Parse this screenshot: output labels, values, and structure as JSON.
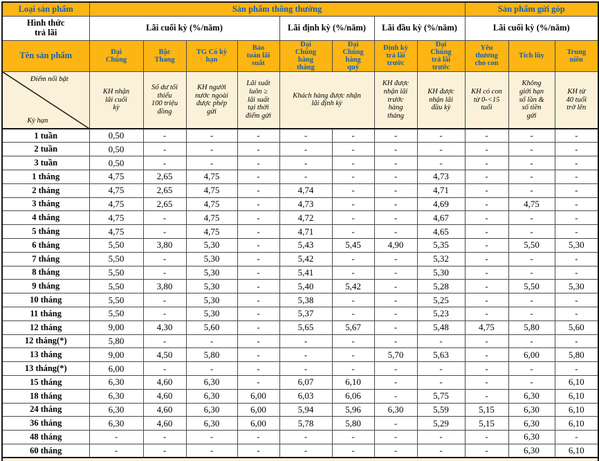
{
  "palette": {
    "orange": "#FCB513",
    "blue": "#1A5EAD",
    "cream": "#FBF1D8",
    "grid": "#4b4b4b",
    "dark": "#161616"
  },
  "header": {
    "row1": {
      "col0": "Loại sản phẩm",
      "normal": "Sản phẩm thông thường",
      "gui_gop": "Sản phẩm gửi góp"
    },
    "row2": {
      "col0": "Hình thức\ntrả lãi",
      "groups": [
        {
          "label": "Lãi cuối kỳ (%/năm)",
          "span": 4
        },
        {
          "label": "Lãi định kỳ (%/năm)",
          "span": 2
        },
        {
          "label": "Lãi đầu kỳ (%/năm)",
          "span": 2
        },
        {
          "label": "Lãi cuối kỳ (%/năm)",
          "span": 3
        }
      ]
    },
    "row3": {
      "col0": "Tên sản phẩm",
      "products": [
        "Đại\nChúng",
        "Bậc\nThang",
        "TG Có kỳ\nhạn",
        "Bảo\ntoàn lãi\nsuất",
        "Đại\nChúng\nhàng\ntháng",
        "Đại\nChúng\nhàng\nquý",
        "Định kỳ\ntrả lãi\ntrước",
        "Đại\nChúng\ntrả lãi\ntrước",
        "Yêu\nthương\ncho con",
        "Tích lũy",
        "Trung\nniên"
      ]
    },
    "row4": {
      "corner_top": "Điểm nổi bật",
      "corner_bottom": "Kỳ hạn",
      "highlights": [
        {
          "text": "KH nhận\nlãi cuối\nkỳ",
          "span": 1
        },
        {
          "text": "Số dư tối\nthiểu\n100 triệu\nđồng",
          "span": 1
        },
        {
          "text": "KH người\nnước ngoài\nđược phép\ngửi",
          "span": 1
        },
        {
          "text": "Lãi suất\nluôn ≥\nlãi suất\ntại thời\nđiểm gửi",
          "span": 1
        },
        {
          "text": "Khách hàng được nhận\nlãi định kỳ",
          "span": 2
        },
        {
          "text": "KH được\nnhận lãi\ntrước\nhàng\ntháng",
          "span": 1
        },
        {
          "text": "KH được\nnhận lãi\nđầu kỳ",
          "span": 1
        },
        {
          "text": "KH có con\ntừ 0-<15\ntuổi",
          "span": 1
        },
        {
          "text": "Không\ngiới hạn\nsố lần &\nsố tiền\ngửi",
          "span": 1
        },
        {
          "text": "KH từ\n40 tuổi\ntrở lên",
          "span": 1
        }
      ]
    }
  },
  "rows": [
    {
      "term": "1 tuần",
      "values": [
        "0,50",
        "-",
        "-",
        "-",
        "-",
        "-",
        "-",
        "-",
        "-",
        "-",
        "-"
      ]
    },
    {
      "term": "2 tuần",
      "values": [
        "0,50",
        "-",
        "-",
        "-",
        "-",
        "-",
        "-",
        "-",
        "-",
        "-",
        "-"
      ]
    },
    {
      "term": "3 tuần",
      "values": [
        "0,50",
        "-",
        "-",
        "-",
        "-",
        "-",
        "-",
        "-",
        "-",
        "-",
        "-"
      ]
    },
    {
      "term": "1 tháng",
      "values": [
        "4,75",
        "2,65",
        "4,75",
        "-",
        "-",
        "-",
        "-",
        "4,73",
        "-",
        "-",
        "-"
      ]
    },
    {
      "term": "2 tháng",
      "values": [
        "4,75",
        "2,65",
        "4,75",
        "-",
        "4,74",
        "-",
        "-",
        "4,71",
        "-",
        "-",
        "-"
      ]
    },
    {
      "term": "3 tháng",
      "values": [
        "4,75",
        "2,65",
        "4,75",
        "-",
        "4,73",
        "-",
        "-",
        "4,69",
        "-",
        "4,75",
        "-"
      ]
    },
    {
      "term": "4 tháng",
      "values": [
        "4,75",
        "-",
        "4,75",
        "-",
        "4,72",
        "-",
        "-",
        "4,67",
        "-",
        "-",
        "-"
      ]
    },
    {
      "term": "5 tháng",
      "values": [
        "4,75",
        "-",
        "4,75",
        "-",
        "4,71",
        "-",
        "-",
        "4,65",
        "-",
        "-",
        "-"
      ]
    },
    {
      "term": "6 tháng",
      "values": [
        "5,50",
        "3,80",
        "5,30",
        "-",
        "5,43",
        "5,45",
        "4,90",
        "5,35",
        "-",
        "5,50",
        "5,30"
      ]
    },
    {
      "term": "7 tháng",
      "values": [
        "5,50",
        "-",
        "5,30",
        "-",
        "5,42",
        "-",
        "-",
        "5,32",
        "-",
        "-",
        "-"
      ]
    },
    {
      "term": "8 tháng",
      "values": [
        "5,50",
        "-",
        "5,30",
        "-",
        "5,41",
        "-",
        "-",
        "5,30",
        "-",
        "-",
        "-"
      ]
    },
    {
      "term": "9 tháng",
      "values": [
        "5,50",
        "3,80",
        "5,30",
        "-",
        "5,40",
        "5,42",
        "-",
        "5,28",
        "-",
        "5,50",
        "5,30"
      ]
    },
    {
      "term": "10 tháng",
      "values": [
        "5,50",
        "-",
        "5,30",
        "-",
        "5,38",
        "-",
        "-",
        "5,25",
        "-",
        "-",
        "-"
      ]
    },
    {
      "term": "11 tháng",
      "values": [
        "5,50",
        "-",
        "5,30",
        "-",
        "5,37",
        "-",
        "-",
        "5,23",
        "-",
        "-",
        "-"
      ]
    },
    {
      "term": "12 tháng",
      "values": [
        "9,00",
        "4,30",
        "5,60",
        "-",
        "5,65",
        "5,67",
        "-",
        "5,48",
        "4,75",
        "5,80",
        "5,60"
      ]
    },
    {
      "term": "12 tháng(*)",
      "values": [
        "5,80",
        "-",
        "-",
        "-",
        "-",
        "-",
        "-",
        "-",
        "-",
        "-",
        "-"
      ]
    },
    {
      "term": "13 tháng",
      "values": [
        "9,00",
        "4,50",
        "5,80",
        "-",
        "-",
        "-",
        "5,70",
        "5,63",
        "-",
        "6,00",
        "5,80"
      ]
    },
    {
      "term": "13 tháng(*)",
      "values": [
        "6,00",
        "-",
        "-",
        "-",
        "-",
        "-",
        "-",
        "-",
        "-",
        "-",
        "-"
      ]
    },
    {
      "term": "15 tháng",
      "values": [
        "6,30",
        "4,60",
        "6,30",
        "-",
        "6,07",
        "6,10",
        "-",
        "-",
        "-",
        "-",
        "6,10"
      ]
    },
    {
      "term": "18 tháng",
      "values": [
        "6,30",
        "4,60",
        "6,30",
        "6,00",
        "6,03",
        "6,06",
        "-",
        "5,75",
        "-",
        "6,30",
        "6,10"
      ]
    },
    {
      "term": "24 tháng",
      "values": [
        "6,30",
        "4,60",
        "6,30",
        "6,00",
        "5,94",
        "5,96",
        "6,30",
        "5,59",
        "5,15",
        "6,30",
        "6,10"
      ]
    },
    {
      "term": "36 tháng",
      "values": [
        "6,30",
        "4,60",
        "6,30",
        "6,00",
        "5,78",
        "5,80",
        "-",
        "5,29",
        "5,15",
        "6,30",
        "6,10"
      ]
    },
    {
      "term": "48 tháng",
      "values": [
        "-",
        "-",
        "-",
        "-",
        "-",
        "-",
        "-",
        "-",
        "-",
        "6,30",
        "-"
      ]
    },
    {
      "term": "60 tháng",
      "values": [
        "-",
        "-",
        "-",
        "-",
        "-",
        "-",
        "-",
        "-",
        "-",
        "6,30",
        "6,10"
      ]
    }
  ]
}
